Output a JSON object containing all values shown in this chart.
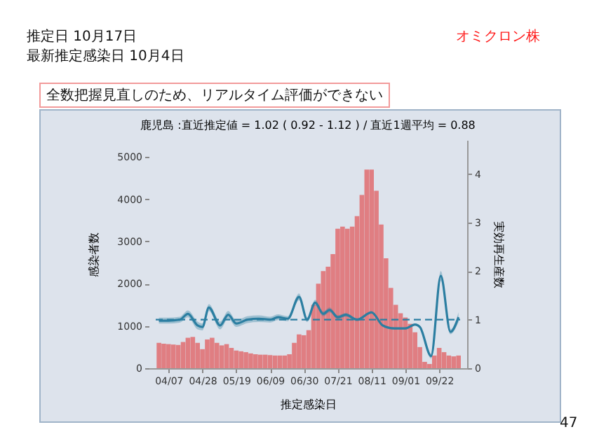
{
  "chart_data": {
    "type": "bar",
    "title": "推定日  10月17日",
    "subtitle": "最新推定感染日  10月4日",
    "annotations": [
      "鹿児島 :直近推定値 = 1.02 ( 0.92 - 1.12 ) / 直近1週平均 = 0.88",
      "オミクロン株",
      "全数把握見直しのため、リアルタイム評価ができない",
      "47"
    ],
    "xlabel": "推定感染日",
    "ylabel": "感染者数",
    "y2label": "実効再生産数",
    "xlim": [
      "--03-30",
      "--10-05"
    ],
    "xticks": [
      {
        "value": "--04-07",
        "label": "04/07"
      },
      {
        "value": "--04-28",
        "label": "04/28"
      },
      {
        "value": "--05-19",
        "label": "05/19"
      },
      {
        "value": "--06-09",
        "label": "06/09"
      },
      {
        "value": "--06-30",
        "label": "06/30"
      },
      {
        "value": "--07-21",
        "label": "07/21"
      },
      {
        "value": "--08-11",
        "label": "08/11"
      },
      {
        "value": "--09-01",
        "label": "09/01"
      },
      {
        "value": "--09-22",
        "label": "09/22"
      }
    ],
    "ylim": [
      0,
      5400
    ],
    "yticks": [
      0,
      1000,
      2000,
      3000,
      4000,
      5000
    ],
    "y2lim": [
      0,
      4.7
    ],
    "y2ticks": [
      0,
      1,
      2,
      3,
      4
    ],
    "grid": false,
    "series": [
      {
        "color": "#e07e82",
        "x": [
          "--04-01",
          "--04-04",
          "--04-07",
          "--04-10",
          "--04-13",
          "--04-16",
          "--04-19",
          "--04-22",
          "--04-25",
          "--04-28",
          "--05-01",
          "--05-04",
          "--05-07",
          "--05-10",
          "--05-13",
          "--05-16",
          "--05-19",
          "--05-22",
          "--05-25",
          "--05-28",
          "--05-31",
          "--06-03",
          "--06-06",
          "--06-09",
          "--06-12",
          "--06-15",
          "--06-18",
          "--06-21",
          "--06-24",
          "--06-27",
          "--06-30",
          "--07-03",
          "--07-06",
          "--07-09",
          "--07-12",
          "--07-15",
          "--07-18",
          "--07-21",
          "--07-24",
          "--07-27",
          "--07-30",
          "--08-02",
          "--08-05",
          "--08-08",
          "--08-11",
          "--08-14",
          "--08-17",
          "--08-20",
          "--08-23",
          "--08-26",
          "--08-29",
          "--09-01",
          "--09-04",
          "--09-07",
          "--09-10",
          "--09-13",
          "--09-16",
          "--09-19",
          "--09-22",
          "--09-25",
          "--09-28",
          "--10-01",
          "--10-04"
        ],
        "values": [
          600,
          580,
          570,
          560,
          550,
          620,
          720,
          740,
          600,
          450,
          680,
          720,
          600,
          540,
          570,
          480,
          420,
          400,
          380,
          350,
          330,
          320,
          320,
          310,
          300,
          300,
          300,
          330,
          600,
          800,
          780,
          900,
          1500,
          2000,
          2300,
          2400,
          2700,
          3300,
          3350,
          3300,
          3350,
          3600,
          4100,
          4700,
          4700,
          4200,
          3400,
          2600,
          1900,
          1500,
          1300,
          1200,
          1050,
          850,
          500,
          150,
          100,
          300,
          480,
          380,
          300,
          280,
          300
        ]
      },
      {
        "type": "line",
        "axis": "y2",
        "color": "#2b7ea1",
        "x": [
          "--04-01",
          "--04-07",
          "--04-14",
          "--04-19",
          "--04-25",
          "--04-28",
          "--05-02",
          "--05-09",
          "--05-14",
          "--05-19",
          "--05-26",
          "--06-02",
          "--06-09",
          "--06-14",
          "--06-20",
          "--06-27",
          "--07-02",
          "--07-07",
          "--07-12",
          "--07-16",
          "--07-21",
          "--07-26",
          "--08-02",
          "--08-11",
          "--08-18",
          "--08-25",
          "--09-01",
          "--09-07",
          "--09-10",
          "--09-17",
          "--09-23",
          "--09-29",
          "--10-04"
        ],
        "values": [
          0.98,
          0.98,
          1.0,
          1.12,
          0.88,
          0.85,
          1.25,
          0.88,
          1.1,
          0.92,
          1.0,
          1.02,
          1.0,
          1.05,
          1.02,
          1.47,
          1.0,
          1.35,
          1.12,
          1.2,
          1.05,
          1.1,
          1.0,
          1.15,
          0.88,
          0.82,
          0.82,
          0.9,
          0.85,
          0.25,
          1.9,
          0.75,
          1.05
        ],
        "lower": [
          0.92,
          0.92,
          0.94,
          1.05,
          0.8,
          0.78,
          1.18,
          0.8,
          1.02,
          0.85,
          0.93,
          0.95,
          0.94,
          0.99,
          0.97,
          1.4,
          0.95,
          1.29,
          1.07,
          1.15,
          1.01,
          1.06,
          0.97,
          1.12,
          0.86,
          0.8,
          0.8,
          0.88,
          0.82,
          0.2,
          1.8,
          0.7,
          0.95
        ],
        "upper": [
          1.04,
          1.04,
          1.06,
          1.19,
          0.96,
          0.92,
          1.32,
          0.96,
          1.18,
          0.99,
          1.07,
          1.09,
          1.06,
          1.11,
          1.07,
          1.54,
          1.05,
          1.41,
          1.17,
          1.25,
          1.09,
          1.14,
          1.03,
          1.18,
          0.9,
          0.84,
          0.84,
          0.92,
          0.88,
          0.3,
          2.0,
          0.8,
          1.15
        ]
      }
    ],
    "ref_lines": [
      {
        "axis": "y2",
        "value": 1,
        "color": "#2b7ea1",
        "line_style": "dashed"
      }
    ]
  }
}
